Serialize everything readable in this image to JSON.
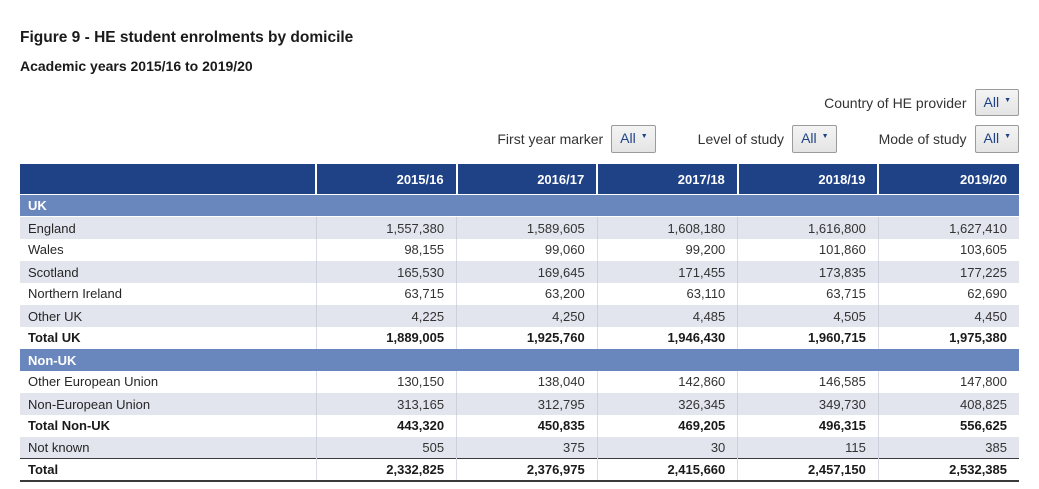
{
  "header": {
    "title": "Figure 9 - HE student enrolments by domicile",
    "subtitle": "Academic years 2015/16 to 2019/20"
  },
  "filters": [
    {
      "label": "Country of HE provider",
      "value": "All"
    },
    {
      "label": "First year marker",
      "value": "All"
    },
    {
      "label": "Level of study",
      "value": "All"
    },
    {
      "label": "Mode of study",
      "value": "All"
    }
  ],
  "colors": {
    "header_navy": "#1f4287",
    "section_blue": "#6a87bd",
    "row_shade": "#e2e5ee",
    "dropdown_text": "#1f4287"
  },
  "table": {
    "year_columns": [
      "2015/16",
      "2016/17",
      "2017/18",
      "2018/19",
      "2019/20"
    ],
    "rows": [
      {
        "type": "section",
        "label": "UK"
      },
      {
        "type": "data",
        "label": "England",
        "values": [
          "1,557,380",
          "1,589,605",
          "1,608,180",
          "1,616,800",
          "1,627,410"
        ],
        "shade": true,
        "bold": false
      },
      {
        "type": "data",
        "label": "Wales",
        "values": [
          "98,155",
          "99,060",
          "99,200",
          "101,860",
          "103,605"
        ],
        "shade": false,
        "bold": false
      },
      {
        "type": "data",
        "label": "Scotland",
        "values": [
          "165,530",
          "169,645",
          "171,455",
          "173,835",
          "177,225"
        ],
        "shade": true,
        "bold": false
      },
      {
        "type": "data",
        "label": "Northern Ireland",
        "values": [
          "63,715",
          "63,200",
          "63,110",
          "63,715",
          "62,690"
        ],
        "shade": false,
        "bold": false
      },
      {
        "type": "data",
        "label": "Other UK",
        "values": [
          "4,225",
          "4,250",
          "4,485",
          "4,505",
          "4,450"
        ],
        "shade": true,
        "bold": false
      },
      {
        "type": "data",
        "label": "Total UK",
        "values": [
          "1,889,005",
          "1,925,760",
          "1,946,430",
          "1,960,715",
          "1,975,380"
        ],
        "shade": false,
        "bold": true
      },
      {
        "type": "section",
        "label": "Non-UK"
      },
      {
        "type": "data",
        "label": "Other European Union",
        "values": [
          "130,150",
          "138,040",
          "142,860",
          "146,585",
          "147,800"
        ],
        "shade": false,
        "bold": false
      },
      {
        "type": "data",
        "label": "Non-European Union",
        "values": [
          "313,165",
          "312,795",
          "326,345",
          "349,730",
          "408,825"
        ],
        "shade": true,
        "bold": false
      },
      {
        "type": "data",
        "label": "Total Non-UK",
        "values": [
          "443,320",
          "450,835",
          "469,205",
          "496,315",
          "556,625"
        ],
        "shade": false,
        "bold": true
      },
      {
        "type": "data",
        "label": "Not known",
        "values": [
          "505",
          "375",
          "30",
          "115",
          "385"
        ],
        "shade": true,
        "bold": false
      },
      {
        "type": "data",
        "label": "Total",
        "values": [
          "2,332,825",
          "2,376,975",
          "2,415,660",
          "2,457,150",
          "2,532,385"
        ],
        "shade": false,
        "bold": true,
        "final": true
      }
    ]
  }
}
